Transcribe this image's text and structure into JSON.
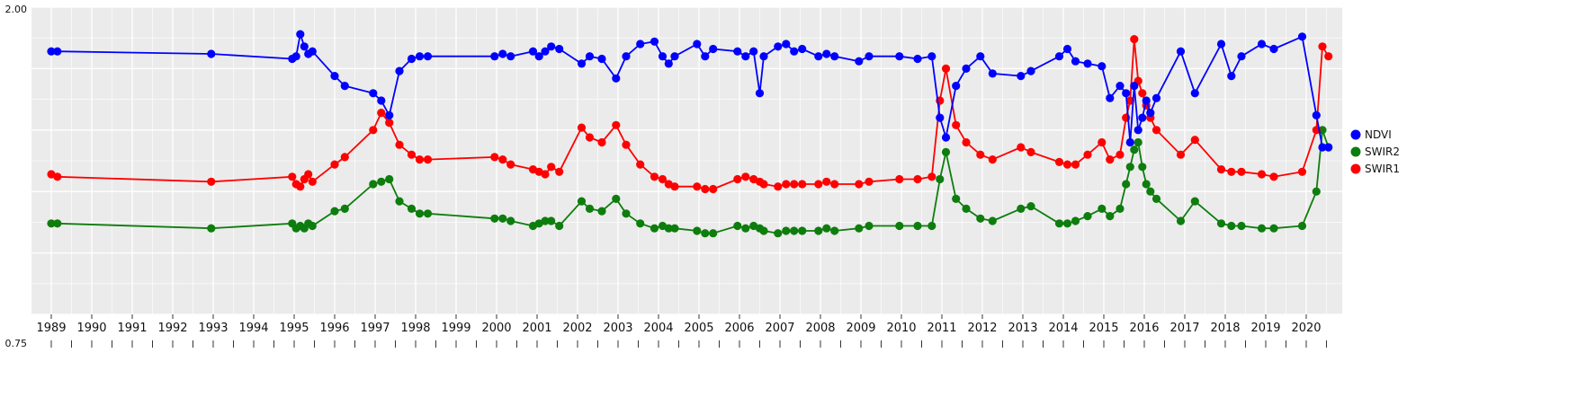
{
  "chart_data": {
    "type": "line",
    "title": "",
    "xlabel": "",
    "ylabel": "",
    "ylim": [
      0.75,
      2.0
    ],
    "xlim": [
      1988.51,
      2020.89
    ],
    "grid": true,
    "panel_bg": "#ebebeb",
    "grid_color": "#ffffff",
    "legend_position": "right",
    "y_ticks": [
      {
        "value": 2.0,
        "label": "2.00"
      },
      {
        "value": 0.75,
        "label": "0.75"
      }
    ],
    "x_tick_labels": [
      "1989",
      "1990",
      "1991",
      "1992",
      "1993",
      "1994",
      "1995",
      "1996",
      "1997",
      "1998",
      "1999",
      "2000",
      "2001",
      "2002",
      "2003",
      "2004",
      "2005",
      "2006",
      "2007",
      "2008",
      "2009",
      "2010",
      "2011",
      "2012",
      "2013",
      "2014",
      "2015",
      "2016",
      "2017",
      "2018",
      "2019",
      "2020"
    ],
    "x_minor_step": 0.5,
    "y_minor_step": 0.125,
    "x": [
      1989.0,
      1989.15,
      1992.95,
      1994.95,
      1995.05,
      1995.15,
      1995.25,
      1995.35,
      1995.45,
      1996.0,
      1996.25,
      1996.95,
      1997.15,
      1997.35,
      1997.6,
      1997.9,
      1998.1,
      1998.3,
      1999.95,
      2000.15,
      2000.35,
      2000.9,
      2001.05,
      2001.2,
      2001.35,
      2001.55,
      2002.1,
      2002.3,
      2002.6,
      2002.95,
      2003.2,
      2003.55,
      2003.9,
      2004.1,
      2004.25,
      2004.4,
      2004.95,
      2005.15,
      2005.35,
      2005.95,
      2006.15,
      2006.35,
      2006.5,
      2006.6,
      2006.95,
      2007.15,
      2007.35,
      2007.55,
      2007.95,
      2008.15,
      2008.35,
      2008.95,
      2009.2,
      2009.95,
      2010.4,
      2010.75,
      2010.95,
      2011.1,
      2011.35,
      2011.6,
      2011.95,
      2012.25,
      2012.95,
      2013.2,
      2013.9,
      2014.1,
      2014.3,
      2014.6,
      2014.95,
      2015.15,
      2015.4,
      2015.55,
      2015.65,
      2015.75,
      2015.85,
      2015.95,
      2016.05,
      2016.15,
      2016.3,
      2016.9,
      2017.25,
      2017.9,
      2018.15,
      2018.4,
      2018.9,
      2019.2,
      2019.9,
      2020.25,
      2020.4,
      2020.55
    ],
    "series": [
      {
        "name": "NDVI",
        "color": "#0000ff",
        "values": [
          1.82,
          1.82,
          1.81,
          1.79,
          1.8,
          1.89,
          1.84,
          1.81,
          1.82,
          1.72,
          1.68,
          1.65,
          1.62,
          1.56,
          1.74,
          1.79,
          1.8,
          1.8,
          1.8,
          1.81,
          1.8,
          1.82,
          1.8,
          1.82,
          1.84,
          1.83,
          1.77,
          1.8,
          1.79,
          1.71,
          1.8,
          1.85,
          1.86,
          1.8,
          1.77,
          1.8,
          1.85,
          1.8,
          1.83,
          1.82,
          1.8,
          1.82,
          1.65,
          1.8,
          1.84,
          1.85,
          1.82,
          1.83,
          1.8,
          1.81,
          1.8,
          1.78,
          1.8,
          1.8,
          1.79,
          1.8,
          1.55,
          1.47,
          1.68,
          1.75,
          1.8,
          1.73,
          1.72,
          1.74,
          1.8,
          1.83,
          1.78,
          1.77,
          1.76,
          1.63,
          1.68,
          1.65,
          1.45,
          1.68,
          1.5,
          1.55,
          1.62,
          1.57,
          1.63,
          1.82,
          1.65,
          1.85,
          1.72,
          1.8,
          1.85,
          1.83,
          1.88,
          1.56,
          1.43,
          1.43
        ]
      },
      {
        "name": "SWIR2",
        "color": "#0d7d0d",
        "values": [
          1.12,
          1.12,
          1.1,
          1.12,
          1.1,
          1.11,
          1.1,
          1.12,
          1.11,
          1.17,
          1.18,
          1.28,
          1.29,
          1.3,
          1.21,
          1.18,
          1.16,
          1.16,
          1.14,
          1.14,
          1.13,
          1.11,
          1.12,
          1.13,
          1.13,
          1.11,
          1.21,
          1.18,
          1.17,
          1.22,
          1.16,
          1.12,
          1.1,
          1.11,
          1.1,
          1.1,
          1.09,
          1.08,
          1.08,
          1.11,
          1.1,
          1.11,
          1.1,
          1.09,
          1.08,
          1.09,
          1.09,
          1.09,
          1.09,
          1.1,
          1.09,
          1.1,
          1.11,
          1.11,
          1.11,
          1.11,
          1.3,
          1.41,
          1.22,
          1.18,
          1.14,
          1.13,
          1.18,
          1.19,
          1.12,
          1.12,
          1.13,
          1.15,
          1.18,
          1.15,
          1.18,
          1.28,
          1.35,
          1.42,
          1.45,
          1.35,
          1.28,
          1.25,
          1.22,
          1.13,
          1.21,
          1.12,
          1.11,
          1.11,
          1.1,
          1.1,
          1.11,
          1.25,
          1.5,
          1.43
        ]
      },
      {
        "name": "SWIR1",
        "color": "#ff0000",
        "values": [
          1.32,
          1.31,
          1.29,
          1.31,
          1.28,
          1.27,
          1.3,
          1.32,
          1.29,
          1.36,
          1.39,
          1.5,
          1.57,
          1.53,
          1.44,
          1.4,
          1.38,
          1.38,
          1.39,
          1.38,
          1.36,
          1.34,
          1.33,
          1.32,
          1.35,
          1.33,
          1.51,
          1.47,
          1.45,
          1.52,
          1.44,
          1.36,
          1.31,
          1.3,
          1.28,
          1.27,
          1.27,
          1.26,
          1.26,
          1.3,
          1.31,
          1.3,
          1.29,
          1.28,
          1.27,
          1.28,
          1.28,
          1.28,
          1.28,
          1.29,
          1.28,
          1.28,
          1.29,
          1.3,
          1.3,
          1.31,
          1.62,
          1.75,
          1.52,
          1.45,
          1.4,
          1.38,
          1.43,
          1.41,
          1.37,
          1.36,
          1.36,
          1.4,
          1.45,
          1.38,
          1.4,
          1.55,
          1.62,
          1.87,
          1.7,
          1.65,
          1.6,
          1.55,
          1.5,
          1.4,
          1.46,
          1.34,
          1.33,
          1.33,
          1.32,
          1.31,
          1.33,
          1.5,
          1.84,
          1.8
        ]
      }
    ],
    "legend_labels": [
      "NDVI",
      "SWIR2",
      "SWIR1"
    ]
  }
}
